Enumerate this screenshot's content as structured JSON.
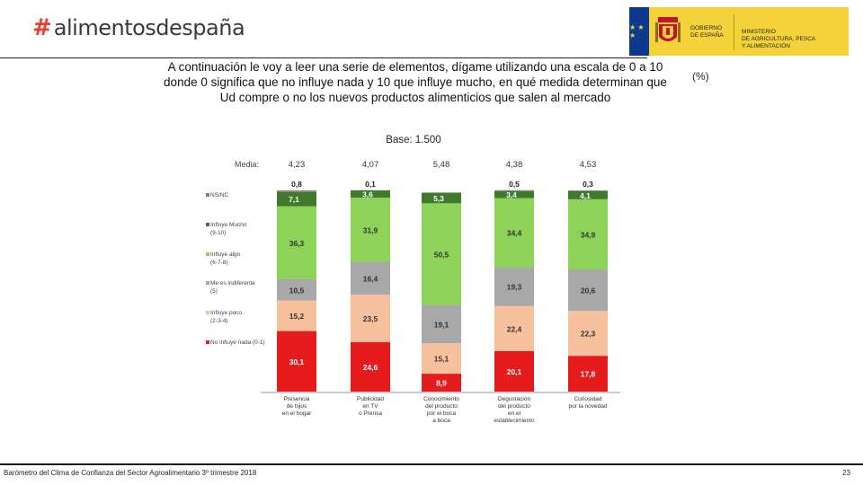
{
  "header": {
    "brand_hash": "#",
    "brand_name": "alimentosdespaña",
    "gov_line1": "GOBIERNO",
    "gov_line2": "DE ESPAÑA",
    "ministry_line1": "MINISTERIO",
    "ministry_line2": "DE AGRICULTURA, PESCA",
    "ministry_line3": "Y ALIMENTACIÓN",
    "eu_stars": "★ ★ ★"
  },
  "question": "A continuación le voy a leer una serie de elementos, dígame utilizando una escala de 0 a 10 donde 0 significa que no influye nada y 10 que influye mucho, en qué medida determinan que Ud compre o no los nuevos productos alimenticios que salen al mercado",
  "unit": "(%)",
  "base": "Base: 1.500",
  "footer": {
    "text": "Barómetro del Clima de Confianza del Sector Agroalimentario 3º trimestre 2018",
    "page": "23"
  },
  "colors": {
    "nsnc": "#808080",
    "mucho": "#3f7a2a",
    "algo": "#8dd35a",
    "indiferente": "#a8a8a8",
    "poco": "#f8c19e",
    "nada": "#e61b1b"
  },
  "chart_data": {
    "type": "bar",
    "stacked": true,
    "media_label": "Media:",
    "media": [
      "4,23",
      "4,07",
      "5,48",
      "4,38",
      "4,53"
    ],
    "categories": [
      [
        "Presencia",
        "de hijos",
        "en el hogar"
      ],
      [
        "Publicidad",
        "en TV",
        "o Prensa"
      ],
      [
        "Conocimiento",
        "del producto",
        "por el boca",
        "a boca"
      ],
      [
        "Degustación",
        "del producto",
        "en el",
        "establecimiento"
      ],
      [
        "Curiosidad",
        "por la novedad"
      ]
    ],
    "series": [
      {
        "key": "nada",
        "name": [
          "No influye nada (0-1)"
        ],
        "values": [
          30.1,
          24.6,
          8.9,
          20.1,
          17.8
        ],
        "labels": [
          "30,1",
          "24,6",
          "8,9",
          "20,1",
          "17,8"
        ]
      },
      {
        "key": "poco",
        "name": [
          "Influye poco",
          "(2-3-4)"
        ],
        "values": [
          15.2,
          23.5,
          15.1,
          22.4,
          22.3
        ],
        "labels": [
          "15,2",
          "23,5",
          "15,1",
          "22,4",
          "22,3"
        ]
      },
      {
        "key": "indiferente",
        "name": [
          "Me es indiferente",
          "(5)"
        ],
        "values": [
          10.5,
          16.4,
          19.1,
          19.3,
          20.6
        ],
        "labels": [
          "10,5",
          "16,4",
          "19,1",
          "19,3",
          "20,6"
        ]
      },
      {
        "key": "algo",
        "name": [
          "Influye algo",
          "(6-7-8)"
        ],
        "values": [
          36.3,
          31.9,
          50.5,
          34.4,
          34.9
        ],
        "labels": [
          "36,3",
          "31,9",
          "50,5",
          "34,4",
          "34,9"
        ]
      },
      {
        "key": "mucho",
        "name": [
          "Influye Mucho",
          "(9-10)"
        ],
        "values": [
          7.1,
          3.6,
          5.3,
          3.4,
          4.1
        ],
        "labels": [
          "7,1",
          "3,6",
          "5,3",
          "3,4",
          "4,1"
        ]
      },
      {
        "key": "nsnc",
        "name": [
          "NS/NC"
        ],
        "values": [
          0.8,
          0.1,
          0.0,
          0.5,
          0.3
        ],
        "labels": [
          "0,8",
          "0,1",
          "",
          "0,5",
          "0,3"
        ]
      }
    ],
    "legend_position": "left",
    "ylim": [
      0,
      100
    ]
  }
}
